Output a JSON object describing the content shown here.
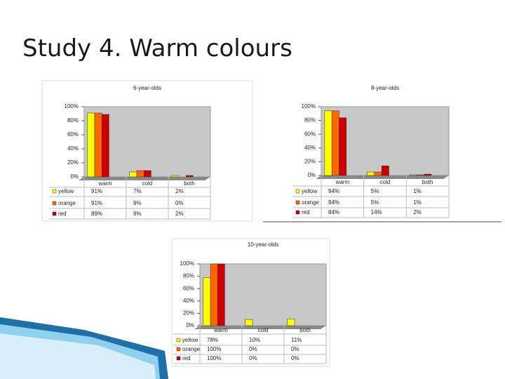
{
  "title": "Study 4. Warm colours",
  "chart_data": [
    {
      "type": "bar",
      "title": "6-year-olds",
      "categories": [
        "warm",
        "cold",
        "both"
      ],
      "series": [
        {
          "name": "yellow",
          "color": "#ffff00",
          "values": [
            91,
            7,
            2
          ],
          "value_labels": [
            "91%",
            "7%",
            "2%"
          ]
        },
        {
          "name": "orange",
          "color": "#ff6600",
          "values": [
            91,
            9,
            0
          ],
          "value_labels": [
            "91%",
            "9%",
            "0%"
          ]
        },
        {
          "name": "red",
          "color": "#cc0000",
          "values": [
            89,
            9,
            2
          ],
          "value_labels": [
            "89%",
            "9%",
            "2%"
          ]
        }
      ],
      "ylim": [
        0,
        100
      ],
      "yticks": [
        {
          "value": 0,
          "label": "0%"
        },
        {
          "value": 20,
          "label": "20%"
        },
        {
          "value": 40,
          "label": "40%"
        },
        {
          "value": 60,
          "label": "60%"
        },
        {
          "value": 80,
          "label": "80%"
        },
        {
          "value": 100,
          "label": "100%"
        }
      ]
    },
    {
      "type": "bar",
      "title": "8-year-olds",
      "categories": [
        "warm",
        "cold",
        "both"
      ],
      "series": [
        {
          "name": "yellow",
          "color": "#ffff00",
          "values": [
            94,
            5,
            1
          ],
          "value_labels": [
            "94%",
            "5%",
            "1%"
          ]
        },
        {
          "name": "orange",
          "color": "#ff6600",
          "values": [
            94,
            5,
            1
          ],
          "value_labels": [
            "94%",
            "5%",
            "1%"
          ]
        },
        {
          "name": "red",
          "color": "#cc0000",
          "values": [
            84,
            14,
            2
          ],
          "value_labels": [
            "84%",
            "14%",
            "2%"
          ]
        }
      ],
      "ylim": [
        0,
        100
      ],
      "yticks": [
        {
          "value": 0,
          "label": "0%"
        },
        {
          "value": 20,
          "label": "20%"
        },
        {
          "value": 40,
          "label": "40%"
        },
        {
          "value": 60,
          "label": "60%"
        },
        {
          "value": 80,
          "label": "80%"
        },
        {
          "value": 100,
          "label": "100%"
        }
      ]
    },
    {
      "type": "bar",
      "title": "10-year-olds",
      "categories": [
        "warm",
        "cold",
        "both"
      ],
      "series": [
        {
          "name": "yellow",
          "color": "#ffff00",
          "values": [
            78,
            10,
            11
          ],
          "value_labels": [
            "78%",
            "10%",
            "11%"
          ]
        },
        {
          "name": "orange",
          "color": "#ff6600",
          "values": [
            100,
            0,
            0
          ],
          "value_labels": [
            "100%",
            "0%",
            "0%"
          ]
        },
        {
          "name": "red",
          "color": "#cc0000",
          "values": [
            100,
            0,
            0
          ],
          "value_labels": [
            "100%",
            "0%",
            "0%"
          ]
        }
      ],
      "ylim": [
        0,
        100
      ],
      "yticks": [
        {
          "value": 0,
          "label": "0%"
        },
        {
          "value": 20,
          "label": "20%"
        },
        {
          "value": 40,
          "label": "40%"
        },
        {
          "value": 60,
          "label": "60%"
        },
        {
          "value": 80,
          "label": "80%"
        },
        {
          "value": 100,
          "label": "100%"
        }
      ]
    }
  ]
}
